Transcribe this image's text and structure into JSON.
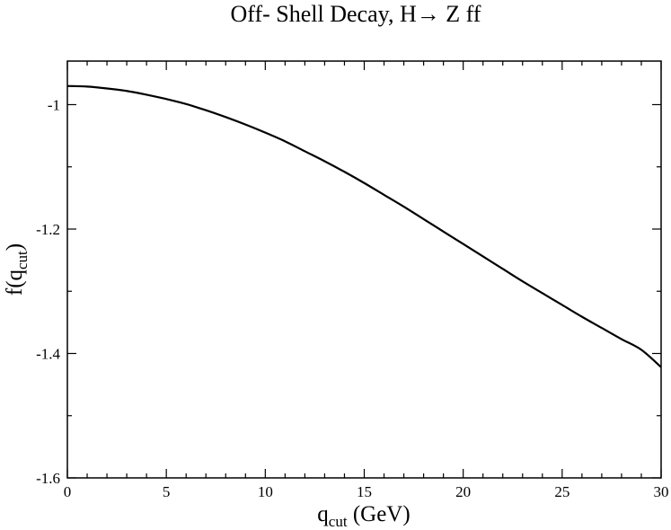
{
  "chart_data": {
    "type": "line",
    "title": "Off- Shell Decay, H→ Z ff",
    "xlabel": {
      "main": "q",
      "sub": "cut",
      "rest": " (GeV)"
    },
    "ylabel": {
      "main": "f(q",
      "sub": "cut",
      "rest": ")"
    },
    "xlim": [
      0,
      30
    ],
    "ylim": [
      -1.6,
      -0.93
    ],
    "x_ticks": [
      0,
      5,
      10,
      15,
      20,
      25,
      30
    ],
    "x_tick_labels": [
      "0",
      "5",
      "10",
      "15",
      "20",
      "25",
      "30"
    ],
    "y_ticks": [
      -1.6,
      -1.4,
      -1.2,
      -1.0
    ],
    "y_tick_labels": [
      "-1.6",
      "-1.4",
      "-1.2",
      "-1"
    ],
    "grid": false,
    "legend": "none",
    "series": [
      {
        "x": [
          0,
          1,
          2,
          3,
          4,
          5,
          6,
          7,
          8,
          9,
          10,
          11,
          12,
          13,
          14,
          15,
          16,
          17,
          18,
          19,
          20,
          21,
          22,
          23,
          24,
          25,
          26,
          27,
          28,
          29,
          30
        ],
        "values": [
          -0.97,
          -0.971,
          -0.974,
          -0.978,
          -0.984,
          -0.991,
          -0.999,
          -1.009,
          -1.02,
          -1.032,
          -1.045,
          -1.059,
          -1.075,
          -1.091,
          -1.108,
          -1.126,
          -1.145,
          -1.164,
          -1.184,
          -1.204,
          -1.224,
          -1.244,
          -1.264,
          -1.284,
          -1.303,
          -1.322,
          -1.341,
          -1.359,
          -1.377,
          -1.394,
          -1.422
        ]
      }
    ]
  }
}
